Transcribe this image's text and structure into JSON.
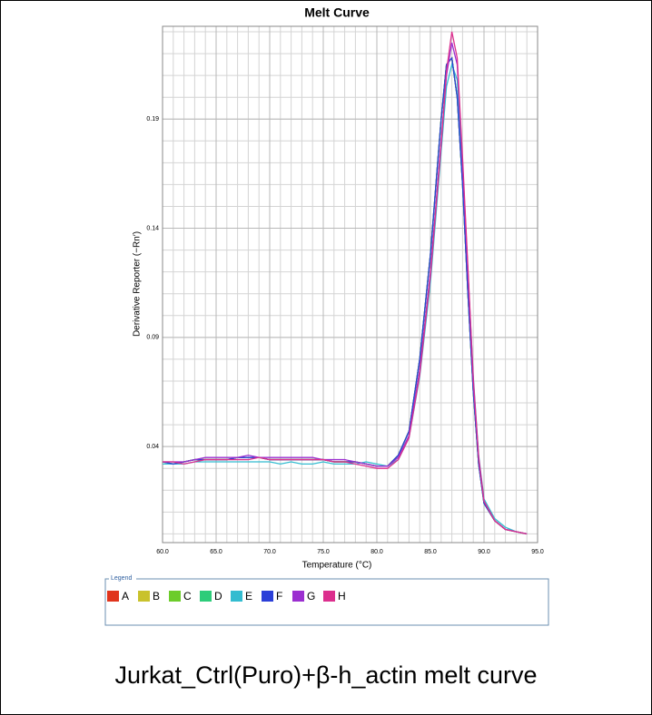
{
  "chart_data": {
    "type": "line",
    "title": "Melt Curve",
    "xlabel": "Temperature (°C)",
    "ylabel": "Derivative Reporter (−Rn′)",
    "legend_title": "Legend",
    "caption": "Jurkat_Ctrl(Puro)+β-h_actin  melt curve",
    "x": [
      60,
      61,
      62,
      63,
      64,
      65,
      66,
      67,
      68,
      69,
      70,
      71,
      72,
      73,
      74,
      75,
      76,
      77,
      78,
      79,
      80,
      81,
      82,
      83,
      84,
      85,
      86,
      86.5,
      87,
      87.5,
      88,
      88.5,
      89,
      89.5,
      90,
      91,
      92,
      93,
      94
    ],
    "xlim": [
      60,
      95
    ],
    "xticks": [
      {
        "value": 60,
        "label": "60.0"
      },
      {
        "value": 65,
        "label": "65.0"
      },
      {
        "value": 70,
        "label": "70.0"
      },
      {
        "value": 75,
        "label": "75.0"
      },
      {
        "value": 80,
        "label": "80.0"
      },
      {
        "value": 85,
        "label": "85.0"
      },
      {
        "value": 90,
        "label": "90.0"
      },
      {
        "value": 95,
        "label": "95.0"
      }
    ],
    "ylim": [
      -0.004,
      0.2325
    ],
    "yticks": [
      0.04,
      0.09,
      0.14,
      0.19
    ],
    "grid": true,
    "series": [
      {
        "name": "A",
        "color": "#e0341c",
        "values": [
          0.033,
          0.032,
          0.033,
          0.034,
          0.034,
          0.034,
          0.034,
          0.035,
          0.035,
          0.035,
          0.034,
          0.034,
          0.034,
          0.034,
          0.034,
          0.034,
          0.033,
          0.033,
          0.033,
          0.032,
          0.031,
          0.031,
          0.036,
          0.047,
          0.08,
          0.128,
          0.19,
          0.215,
          0.218,
          0.2,
          0.16,
          0.11,
          0.065,
          0.032,
          0.014,
          0.006,
          0.002,
          0.001,
          0.0
        ]
      },
      {
        "name": "B",
        "color": "#c9c22c",
        "values": [
          0.033,
          0.032,
          0.033,
          0.034,
          0.034,
          0.034,
          0.034,
          0.035,
          0.035,
          0.035,
          0.034,
          0.034,
          0.034,
          0.034,
          0.034,
          0.034,
          0.033,
          0.033,
          0.033,
          0.032,
          0.031,
          0.031,
          0.036,
          0.047,
          0.08,
          0.128,
          0.19,
          0.215,
          0.218,
          0.2,
          0.16,
          0.11,
          0.065,
          0.032,
          0.014,
          0.006,
          0.002,
          0.001,
          0.0
        ]
      },
      {
        "name": "C",
        "color": "#6ccc2a",
        "values": [
          0.033,
          0.032,
          0.033,
          0.034,
          0.034,
          0.034,
          0.034,
          0.035,
          0.035,
          0.035,
          0.034,
          0.034,
          0.034,
          0.034,
          0.034,
          0.034,
          0.033,
          0.033,
          0.033,
          0.032,
          0.031,
          0.031,
          0.036,
          0.047,
          0.08,
          0.128,
          0.19,
          0.215,
          0.218,
          0.2,
          0.16,
          0.11,
          0.065,
          0.032,
          0.014,
          0.006,
          0.002,
          0.001,
          0.0
        ]
      },
      {
        "name": "D",
        "color": "#2dcc7a",
        "values": [
          0.033,
          0.032,
          0.033,
          0.034,
          0.034,
          0.034,
          0.034,
          0.035,
          0.035,
          0.035,
          0.034,
          0.034,
          0.034,
          0.034,
          0.034,
          0.034,
          0.033,
          0.033,
          0.033,
          0.032,
          0.031,
          0.031,
          0.036,
          0.047,
          0.08,
          0.128,
          0.19,
          0.215,
          0.218,
          0.2,
          0.16,
          0.11,
          0.065,
          0.032,
          0.014,
          0.006,
          0.002,
          0.001,
          0.0
        ]
      },
      {
        "name": "E",
        "color": "#33bcd0",
        "values": [
          0.032,
          0.032,
          0.032,
          0.033,
          0.033,
          0.033,
          0.033,
          0.033,
          0.033,
          0.033,
          0.033,
          0.032,
          0.033,
          0.032,
          0.032,
          0.033,
          0.032,
          0.032,
          0.032,
          0.033,
          0.032,
          0.031,
          0.034,
          0.044,
          0.072,
          0.115,
          0.175,
          0.205,
          0.215,
          0.208,
          0.168,
          0.12,
          0.072,
          0.036,
          0.016,
          0.007,
          0.003,
          0.001,
          0.0
        ]
      },
      {
        "name": "F",
        "color": "#2b3fd8",
        "values": [
          0.033,
          0.032,
          0.033,
          0.034,
          0.034,
          0.034,
          0.034,
          0.035,
          0.035,
          0.035,
          0.034,
          0.034,
          0.034,
          0.034,
          0.034,
          0.034,
          0.033,
          0.033,
          0.033,
          0.032,
          0.031,
          0.031,
          0.036,
          0.047,
          0.08,
          0.128,
          0.19,
          0.215,
          0.218,
          0.2,
          0.16,
          0.11,
          0.065,
          0.032,
          0.014,
          0.006,
          0.002,
          0.001,
          0.0
        ]
      },
      {
        "name": "G",
        "color": "#9b2fd0",
        "values": [
          0.033,
          0.033,
          0.033,
          0.034,
          0.035,
          0.035,
          0.035,
          0.035,
          0.036,
          0.035,
          0.035,
          0.035,
          0.035,
          0.035,
          0.035,
          0.034,
          0.034,
          0.034,
          0.033,
          0.032,
          0.031,
          0.031,
          0.035,
          0.045,
          0.075,
          0.12,
          0.18,
          0.21,
          0.225,
          0.215,
          0.17,
          0.12,
          0.07,
          0.035,
          0.015,
          0.006,
          0.002,
          0.001,
          0.0
        ]
      },
      {
        "name": "H",
        "color": "#dc2f8e",
        "values": [
          0.033,
          0.033,
          0.032,
          0.033,
          0.034,
          0.034,
          0.034,
          0.034,
          0.034,
          0.035,
          0.034,
          0.034,
          0.034,
          0.034,
          0.034,
          0.034,
          0.033,
          0.033,
          0.032,
          0.031,
          0.03,
          0.03,
          0.034,
          0.044,
          0.073,
          0.118,
          0.178,
          0.212,
          0.23,
          0.218,
          0.172,
          0.122,
          0.071,
          0.035,
          0.015,
          0.006,
          0.002,
          0.001,
          0.0
        ]
      }
    ]
  }
}
